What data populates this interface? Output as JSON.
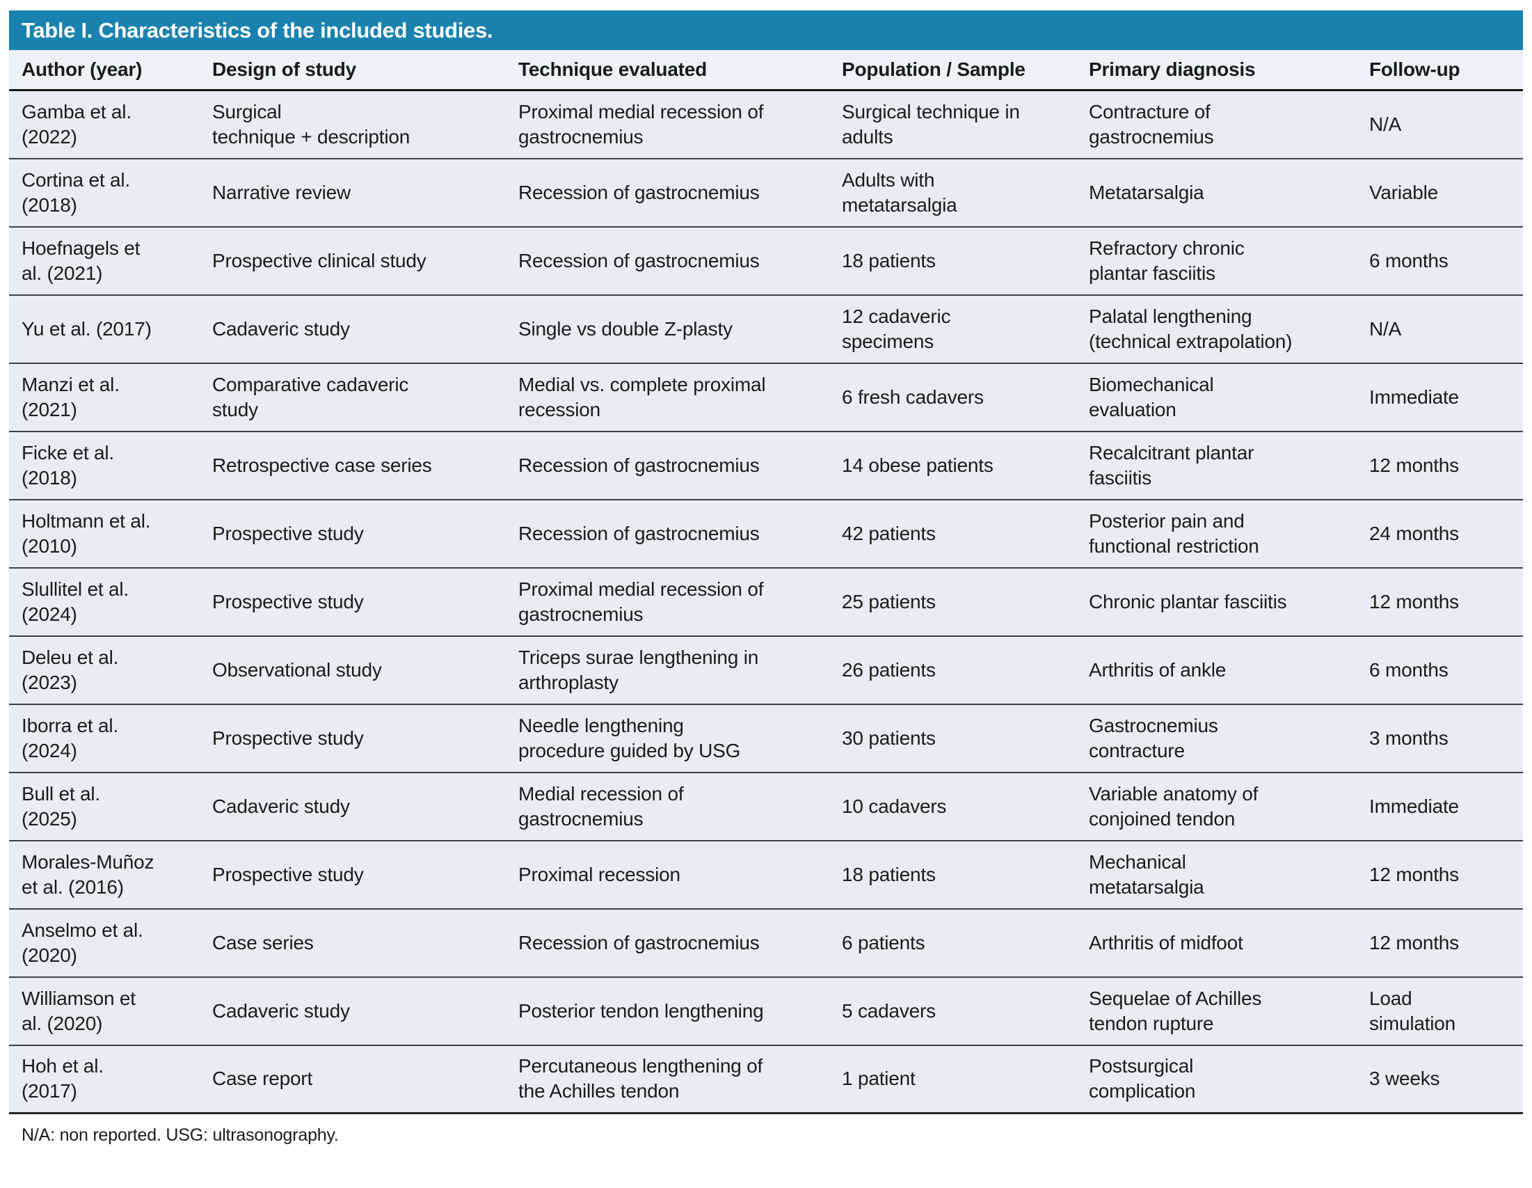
{
  "title": "Table I. Characteristics of the included studies.",
  "table": {
    "columns": [
      "Author (year)",
      "Design of study",
      "Technique evaluated",
      "Population / Sample",
      "Primary diagnosis",
      "Follow-up"
    ],
    "rows": [
      {
        "author": "Gamba et al.\n(2022)",
        "design": "Surgical\ntechnique + description",
        "technique": "Proximal medial recession of\ngastrocnemius",
        "population": "Surgical technique in\nadults",
        "diagnosis": "Contracture of\ngastrocnemius",
        "followup": "N/A"
      },
      {
        "author": "Cortina et al.\n(2018)",
        "design": "Narrative review",
        "technique": "Recession of gastrocnemius",
        "population": "Adults with\nmetatarsalgia",
        "diagnosis": "Metatarsalgia",
        "followup": "Variable"
      },
      {
        "author": "Hoefnagels et\nal. (2021)",
        "design": "Prospective clinical study",
        "technique": "Recession of gastrocnemius",
        "population": "18 patients",
        "diagnosis": "Refractory chronic\nplantar fasciitis",
        "followup": "6 months"
      },
      {
        "author": "Yu et al. (2017)",
        "design": "Cadaveric study",
        "technique": "Single vs double Z-plasty",
        "population": "12 cadaveric\nspecimens",
        "diagnosis": "Palatal lengthening\n(technical extrapolation)",
        "followup": "N/A"
      },
      {
        "author": "Manzi et al.\n(2021)",
        "design": "Comparative cadaveric\nstudy",
        "technique": "Medial vs. complete proximal\nrecession",
        "population": "6 fresh cadavers",
        "diagnosis": "Biomechanical\nevaluation",
        "followup": "Immediate"
      },
      {
        "author": "Ficke et al.\n(2018)",
        "design": "Retrospective case series",
        "technique": "Recession of gastrocnemius",
        "population": "14 obese patients",
        "diagnosis": "Recalcitrant plantar\nfasciitis",
        "followup": "12 months"
      },
      {
        "author": "Holtmann et al.\n(2010)",
        "design": "Prospective study",
        "technique": "Recession of gastrocnemius",
        "population": "42 patients",
        "diagnosis": "Posterior pain and\nfunctional restriction",
        "followup": "24 months"
      },
      {
        "author": "Slullitel et al.\n(2024)",
        "design": "Prospective study",
        "technique": "Proximal medial recession of\ngastrocnemius",
        "population": "25 patients",
        "diagnosis": "Chronic plantar fasciitis",
        "followup": "12 months"
      },
      {
        "author": "Deleu et al.\n(2023)",
        "design": "Observational study",
        "technique": "Triceps surae lengthening in\narthroplasty",
        "population": "26 patients",
        "diagnosis": "Arthritis of ankle",
        "followup": "6 months"
      },
      {
        "author": "Iborra et al.\n(2024)",
        "design": "Prospective study",
        "technique": "Needle lengthening\nprocedure guided by USG",
        "population": "30 patients",
        "diagnosis": "Gastrocnemius\ncontracture",
        "followup": "3 months"
      },
      {
        "author": "Bull et al.\n(2025)",
        "design": "Cadaveric study",
        "technique": "Medial recession of\ngastrocnemius",
        "population": "10 cadavers",
        "diagnosis": "Variable anatomy of\nconjoined tendon",
        "followup": "Immediate"
      },
      {
        "author": "Morales-Muñoz\net al. (2016)",
        "design": "Prospective study",
        "technique": "Proximal recession",
        "population": "18 patients",
        "diagnosis": "Mechanical\nmetatarsalgia",
        "followup": "12 months"
      },
      {
        "author": "Anselmo et al.\n(2020)",
        "design": "Case series",
        "technique": "Recession of gastrocnemius",
        "population": "6 patients",
        "diagnosis": "Arthritis of midfoot",
        "followup": "12 months"
      },
      {
        "author": "Williamson et\nal. (2020)",
        "design": "Cadaveric study",
        "technique": "Posterior tendon lengthening",
        "population": "5 cadavers",
        "diagnosis": "Sequelae of Achilles\ntendon rupture",
        "followup": "Load\nsimulation"
      },
      {
        "author": "Hoh et al.\n(2017)",
        "design": "Case report",
        "technique": "Percutaneous lengthening of\nthe Achilles tendon",
        "population": "1 patient",
        "diagnosis": "Postsurgical\ncomplication",
        "followup": "3 weeks"
      }
    ]
  },
  "footnote": "N/A: non reported. USG: ultrasonography.",
  "colors": {
    "title_bar_bg": "#1982ae",
    "title_text": "#ffffff",
    "header_bg": "#edf1f8",
    "row_bg": "#e8edf5",
    "body_text": "#1b1b1b",
    "row_border": "#3f3f3f"
  }
}
